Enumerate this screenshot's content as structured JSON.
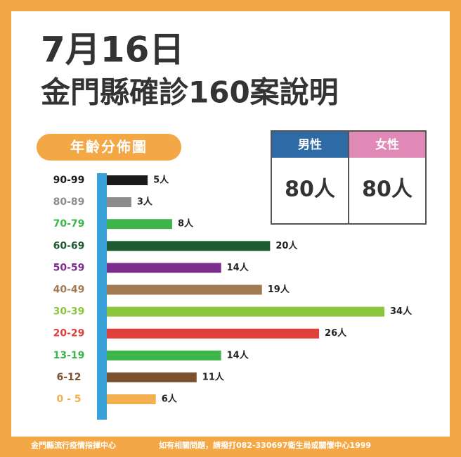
{
  "header": {
    "date": "7月16日",
    "title": "金門縣確診160案說明"
  },
  "gender_table": {
    "headers": [
      "男性",
      "女性"
    ],
    "header_colors": [
      "#2d6aa6",
      "#e089b6"
    ],
    "values": [
      "80人",
      "80人"
    ]
  },
  "chart_data": {
    "type": "bar",
    "orientation": "horizontal",
    "title": "年齡分佈圖",
    "categories": [
      "90-99",
      "80-89",
      "70-79",
      "60-69",
      "50-59",
      "40-49",
      "30-39",
      "20-29",
      "13-19",
      "6-12",
      "0 - 5"
    ],
    "values": [
      5,
      3,
      8,
      20,
      14,
      19,
      34,
      26,
      14,
      11,
      6
    ],
    "value_labels": [
      "5人",
      "3人",
      "8人",
      "20人",
      "14人",
      "19人",
      "34人",
      "26人",
      "14人",
      "11人",
      "6人"
    ],
    "colors": [
      "#1a1a1a",
      "#8c8c8c",
      "#3db54a",
      "#1d5c30",
      "#7b2d8e",
      "#a27a52",
      "#8cc63f",
      "#e0403a",
      "#3db54a",
      "#7a5232",
      "#f2b050"
    ],
    "axis_color": "#3aa0d8"
  },
  "footer": [
    "金門縣流行疫情指揮中心",
    "如有相關問題，請撥打082-330697衛生局或關懷中心1999"
  ]
}
